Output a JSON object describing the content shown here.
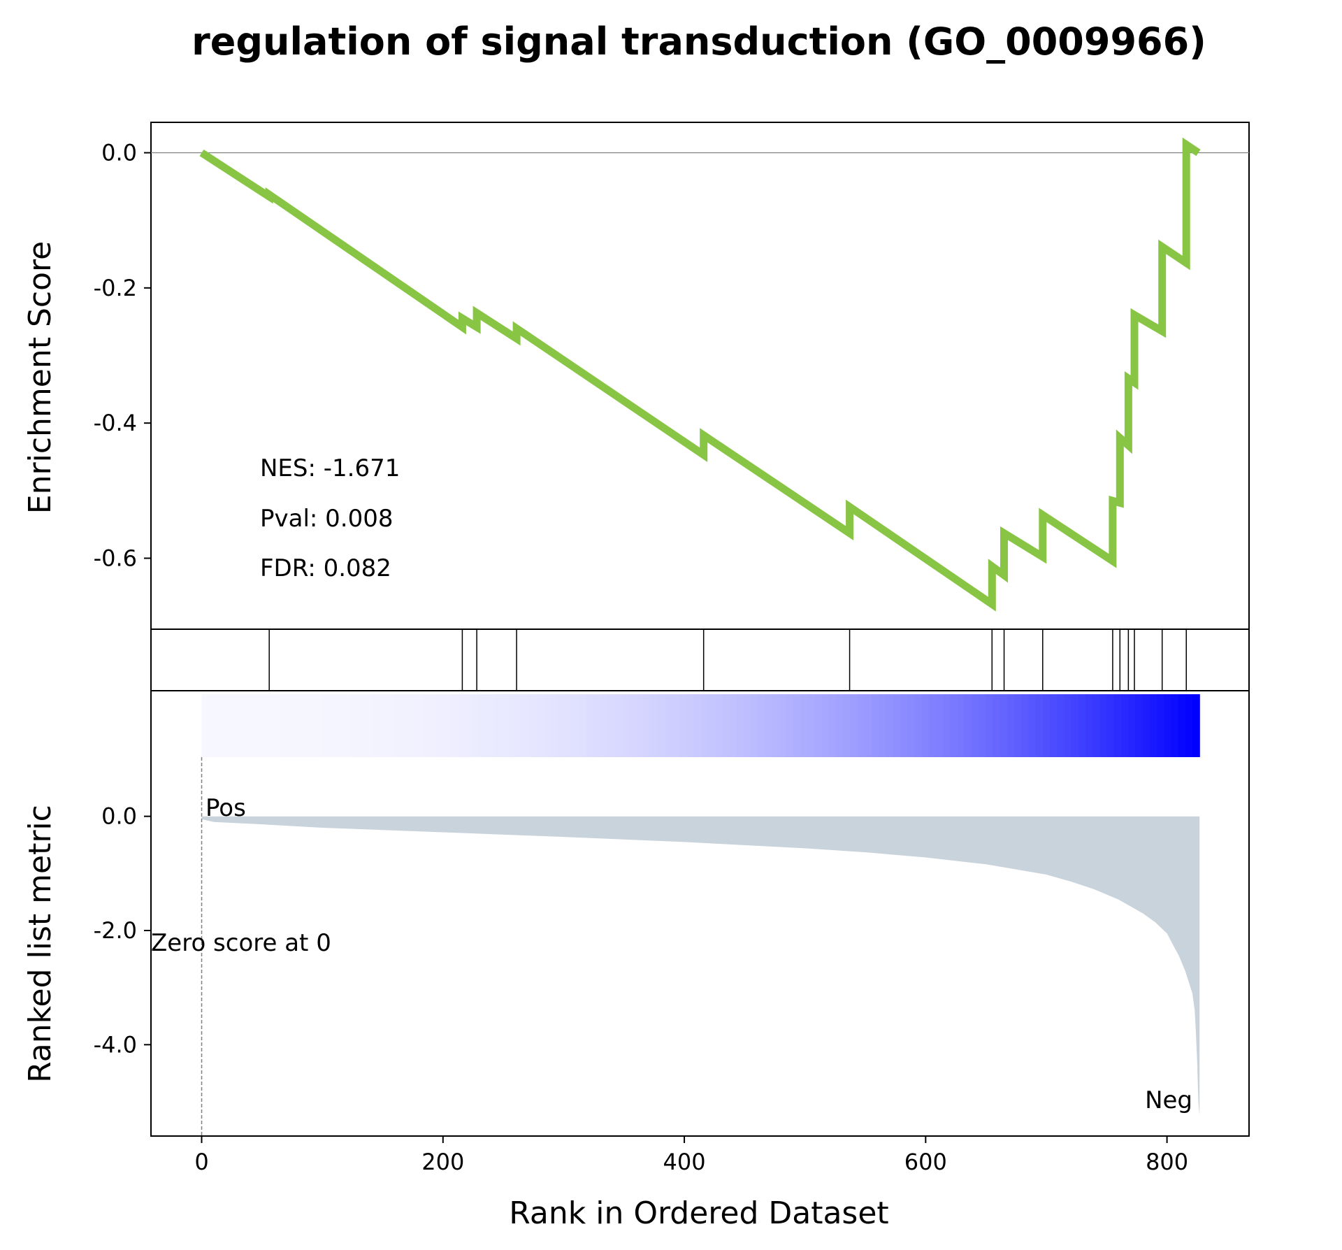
{
  "colors": {
    "es_line": "#88c544",
    "zero_line": "#7f7f7f",
    "metric_fill": "#c9d3dc",
    "pos_label": "#ff0000",
    "neg_label": "#0000ff",
    "heat_low": "#f7f7ff",
    "heat_high": "#0000ff"
  },
  "chart_data": {
    "type": "line",
    "title": "regulation of signal transduction (GO_0009966)",
    "xlabel": "Rank in Ordered Dataset",
    "xlim": [
      -42,
      868
    ],
    "x_ticks": [
      0,
      200,
      400,
      600,
      800
    ],
    "x_tick_labels": [
      "0",
      "200",
      "400",
      "600",
      "800"
    ],
    "n_genes": 827,
    "panels": {
      "enrichment": {
        "ylabel": "Enrichment Score",
        "ylim": [
          -0.705,
          0.045
        ],
        "y_ticks": [
          0.0,
          -0.2,
          -0.4,
          -0.6
        ],
        "y_tick_labels": [
          "0.0",
          "-0.2",
          "-0.4",
          "-0.6"
        ],
        "zero_line": true,
        "series": [
          {
            "x": [
              0,
              56,
              56,
              216,
              216,
              228,
              228,
              261,
              261,
              416,
              416,
              537,
              537,
              655,
              655,
              665,
              665,
              697,
              697,
              755,
              755,
              761,
              761,
              768,
              768,
              773,
              773,
              796,
              796,
              816,
              816,
              826
            ],
            "y": [
              0.0,
              -0.065,
              -0.062,
              -0.258,
              -0.245,
              -0.258,
              -0.237,
              -0.275,
              -0.26,
              -0.447,
              -0.418,
              -0.563,
              -0.524,
              -0.668,
              -0.612,
              -0.625,
              -0.563,
              -0.598,
              -0.536,
              -0.604,
              -0.515,
              -0.518,
              -0.422,
              -0.433,
              -0.334,
              -0.34,
              -0.24,
              -0.264,
              -0.139,
              -0.163,
              0.012,
              0.0
            ]
          }
        ],
        "stats": {
          "nes": "NES: -1.671",
          "pval": "Pval: 0.008",
          "fdr": "FDR: 0.082"
        }
      },
      "hits": {
        "positions": [
          56,
          216,
          228,
          261,
          416,
          537,
          655,
          665,
          697,
          755,
          761,
          768,
          773,
          796,
          816
        ]
      },
      "ranked_metric": {
        "type": "area",
        "ylabel": "Ranked list metric",
        "ylim": [
          -5.6,
          2.2
        ],
        "y_ticks": [
          0.0,
          -2.0,
          -4.0
        ],
        "y_tick_labels": [
          "0.0",
          "-2.0",
          "-4.0"
        ],
        "curve_x": [
          0,
          10,
          50,
          100,
          200,
          300,
          400,
          500,
          550,
          600,
          650,
          700,
          720,
          740,
          760,
          780,
          790,
          800,
          805,
          810,
          815,
          818,
          821,
          823,
          824,
          825,
          826,
          827
        ],
        "curve_y": [
          -0.05,
          -0.1,
          -0.14,
          -0.2,
          -0.28,
          -0.36,
          -0.45,
          -0.56,
          -0.63,
          -0.72,
          -0.84,
          -1.02,
          -1.14,
          -1.28,
          -1.46,
          -1.7,
          -1.85,
          -2.05,
          -2.25,
          -2.45,
          -2.7,
          -2.9,
          -3.1,
          -3.4,
          -3.8,
          -4.3,
          -5.0,
          -5.25
        ],
        "annotations": {
          "pos": "Pos",
          "neg": "Neg",
          "zero_score": "Zero score at 0"
        },
        "zero_cross_rank": 0
      }
    }
  }
}
